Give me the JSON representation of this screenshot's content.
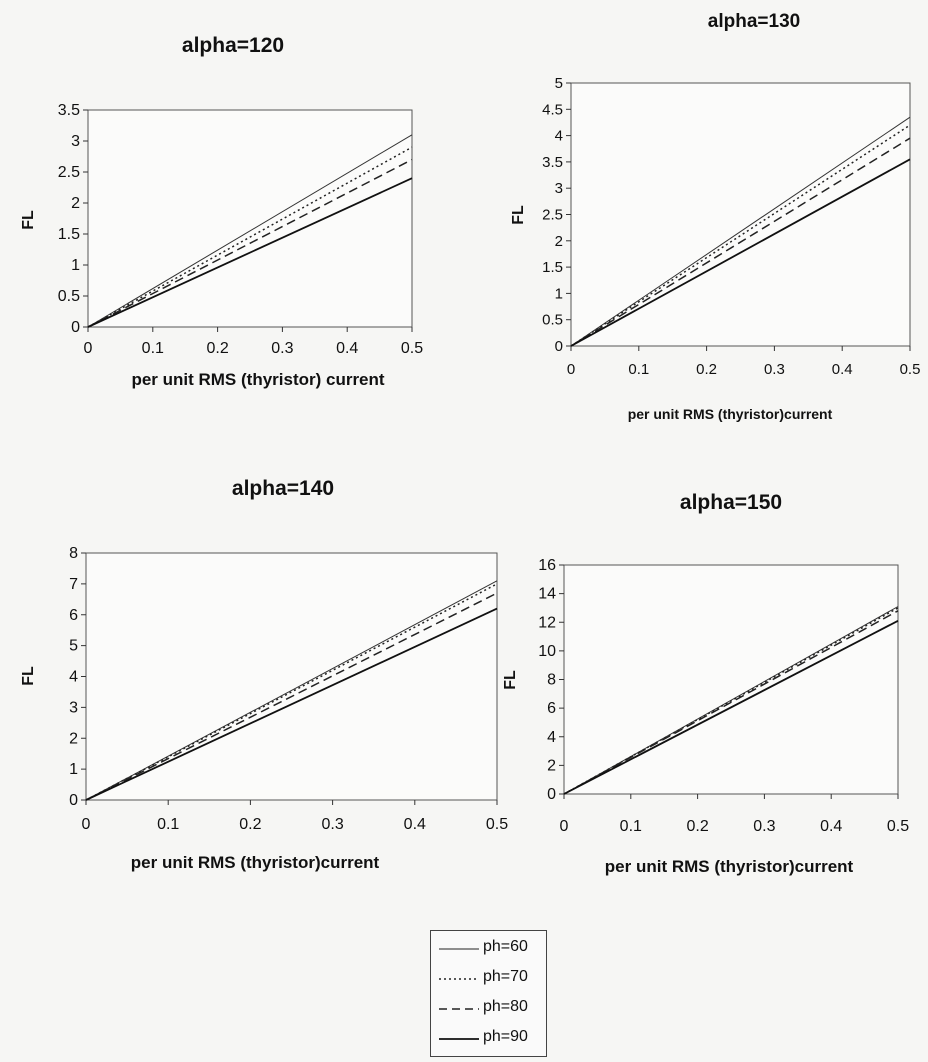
{
  "legend": {
    "items": [
      {
        "label": "ph=60",
        "dash": "",
        "width": 1.0
      },
      {
        "label": "ph=70",
        "dash": "2,3",
        "width": 1.4
      },
      {
        "label": "ph=80",
        "dash": "8,5",
        "width": 1.4
      },
      {
        "label": "ph=90",
        "dash": "",
        "width": 1.8
      }
    ]
  },
  "chart_data": [
    {
      "type": "line",
      "title": "alpha=120",
      "xlabel": "per unit RMS (thyristor) current",
      "ylabel": "FL",
      "xlim": [
        0,
        0.5
      ],
      "ylim": [
        0,
        3.5
      ],
      "xticks": [
        "0",
        "0.1",
        "0.2",
        "0.3",
        "0.4",
        "0.5"
      ],
      "yticks": [
        "0",
        "0.5",
        "1",
        "1.5",
        "2",
        "2.5",
        "3",
        "3.5"
      ],
      "series": [
        {
          "name": "ph=60",
          "x": [
            0,
            0.5
          ],
          "y": [
            0,
            3.1
          ]
        },
        {
          "name": "ph=70",
          "x": [
            0,
            0.5
          ],
          "y": [
            0,
            2.9
          ]
        },
        {
          "name": "ph=80",
          "x": [
            0,
            0.5
          ],
          "y": [
            0,
            2.7
          ]
        },
        {
          "name": "ph=90",
          "x": [
            0,
            0.5
          ],
          "y": [
            0,
            2.4
          ]
        }
      ]
    },
    {
      "type": "line",
      "title": "alpha=130",
      "xlabel": "per unit RMS (thyristor)current",
      "ylabel": "FL",
      "xlim": [
        0,
        0.5
      ],
      "ylim": [
        0,
        5
      ],
      "xticks": [
        "0",
        "0.1",
        "0.2",
        "0.3",
        "0.4",
        "0.5"
      ],
      "yticks": [
        "0",
        "0.5",
        "1",
        "1.5",
        "2",
        "2.5",
        "3",
        "3.5",
        "4",
        "4.5",
        "5"
      ],
      "series": [
        {
          "name": "ph=60",
          "x": [
            0,
            0.5
          ],
          "y": [
            0,
            4.35
          ]
        },
        {
          "name": "ph=70",
          "x": [
            0,
            0.5
          ],
          "y": [
            0,
            4.2
          ]
        },
        {
          "name": "ph=80",
          "x": [
            0,
            0.5
          ],
          "y": [
            0,
            3.95
          ]
        },
        {
          "name": "ph=90",
          "x": [
            0,
            0.5
          ],
          "y": [
            0,
            3.55
          ]
        }
      ]
    },
    {
      "type": "line",
      "title": "alpha=140",
      "xlabel": "per unit RMS (thyristor)current",
      "ylabel": "FL",
      "xlim": [
        0,
        0.5
      ],
      "ylim": [
        0,
        8
      ],
      "xticks": [
        "0",
        "0.1",
        "0.2",
        "0.3",
        "0.4",
        "0.5"
      ],
      "yticks": [
        "0",
        "1",
        "2",
        "3",
        "4",
        "5",
        "6",
        "7",
        "8"
      ],
      "series": [
        {
          "name": "ph=60",
          "x": [
            0,
            0.5
          ],
          "y": [
            0,
            7.1
          ]
        },
        {
          "name": "ph=70",
          "x": [
            0,
            0.5
          ],
          "y": [
            0,
            7.0
          ]
        },
        {
          "name": "ph=80",
          "x": [
            0,
            0.5
          ],
          "y": [
            0,
            6.7
          ]
        },
        {
          "name": "ph=90",
          "x": [
            0,
            0.5
          ],
          "y": [
            0,
            6.2
          ]
        }
      ]
    },
    {
      "type": "line",
      "title": "alpha=150",
      "xlabel": "per unit RMS (thyristor)current",
      "ylabel": "FL",
      "xlim": [
        0,
        0.5
      ],
      "ylim": [
        0,
        16
      ],
      "xticks": [
        "0",
        "0.1",
        "0.2",
        "0.3",
        "0.4",
        "0.5"
      ],
      "yticks": [
        "0",
        "2",
        "4",
        "6",
        "8",
        "10",
        "12",
        "14",
        "16"
      ],
      "series": [
        {
          "name": "ph=60",
          "x": [
            0,
            0.5
          ],
          "y": [
            0,
            13.1
          ]
        },
        {
          "name": "ph=70",
          "x": [
            0,
            0.5
          ],
          "y": [
            0,
            13.0
          ]
        },
        {
          "name": "ph=80",
          "x": [
            0,
            0.5
          ],
          "y": [
            0,
            12.8
          ]
        },
        {
          "name": "ph=90",
          "x": [
            0,
            0.5
          ],
          "y": [
            0,
            12.1
          ]
        }
      ]
    }
  ]
}
